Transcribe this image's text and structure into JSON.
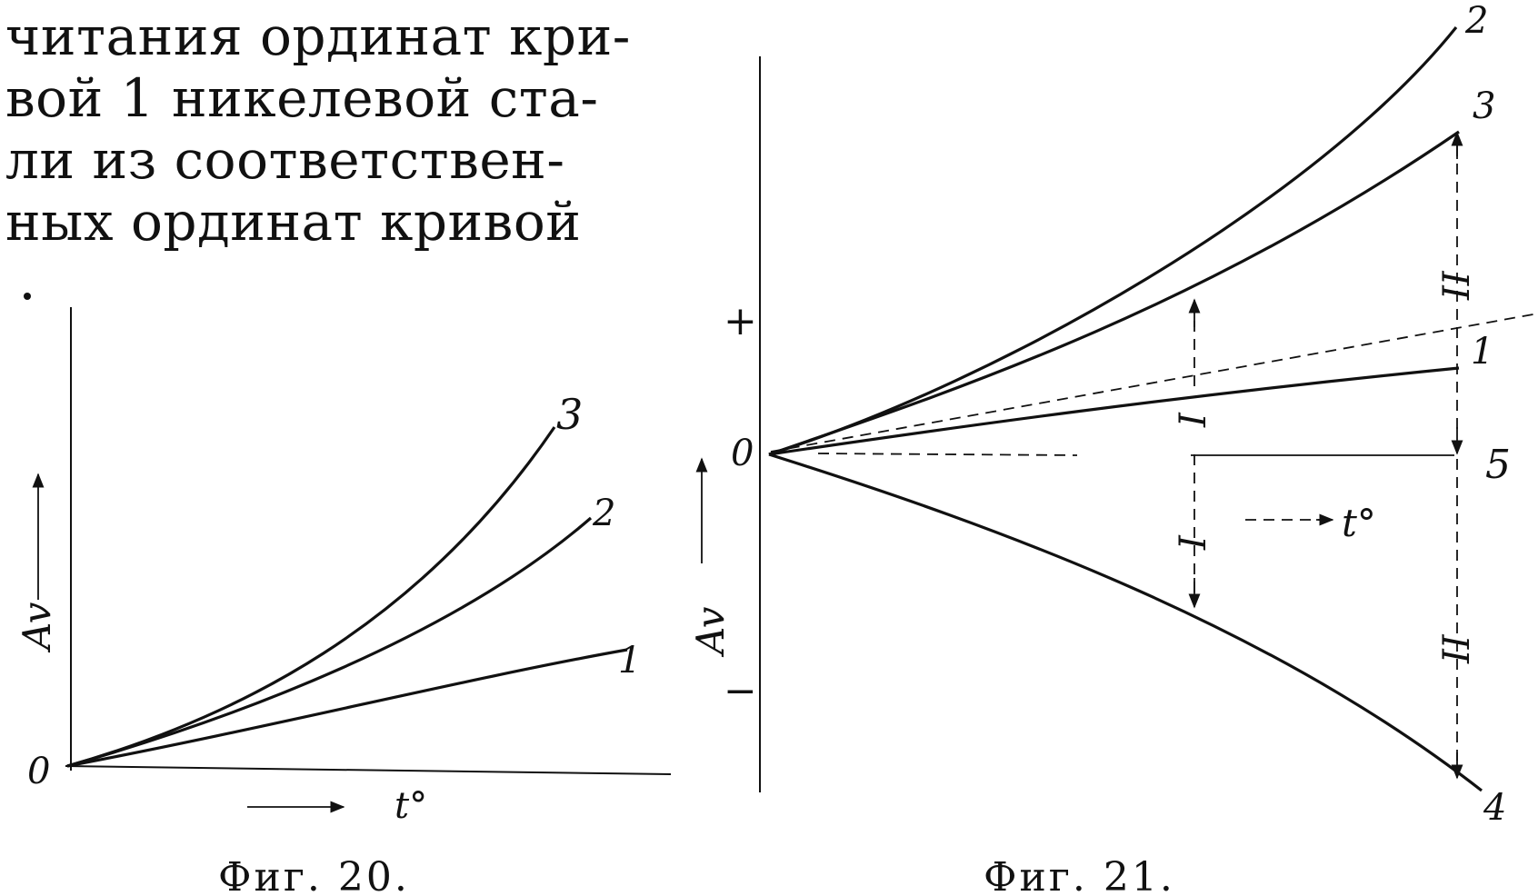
{
  "text_lines": [
    "читания ординат кри-",
    "вой 1 никелевой ста-",
    "ли из соответствен-",
    "ных ординат кривой"
  ],
  "fig20": {
    "caption": "Фиг. 20.",
    "origin_label": "0",
    "y_axis_label": "Av",
    "x_axis_label": "t°",
    "curves": [
      {
        "label": "1"
      },
      {
        "label": "2"
      },
      {
        "label": "3"
      }
    ]
  },
  "fig21": {
    "caption": "Фиг. 21.",
    "origin_label": "0",
    "plus_label": "+",
    "minus_label": "−",
    "y_axis_label": "Av",
    "x_axis_label": "t°",
    "curves": [
      {
        "label": "1"
      },
      {
        "label": "2"
      },
      {
        "label": "3"
      },
      {
        "label": "4"
      },
      {
        "label": "5"
      }
    ],
    "interval_labels": [
      "I",
      "I",
      "II",
      "II"
    ]
  }
}
